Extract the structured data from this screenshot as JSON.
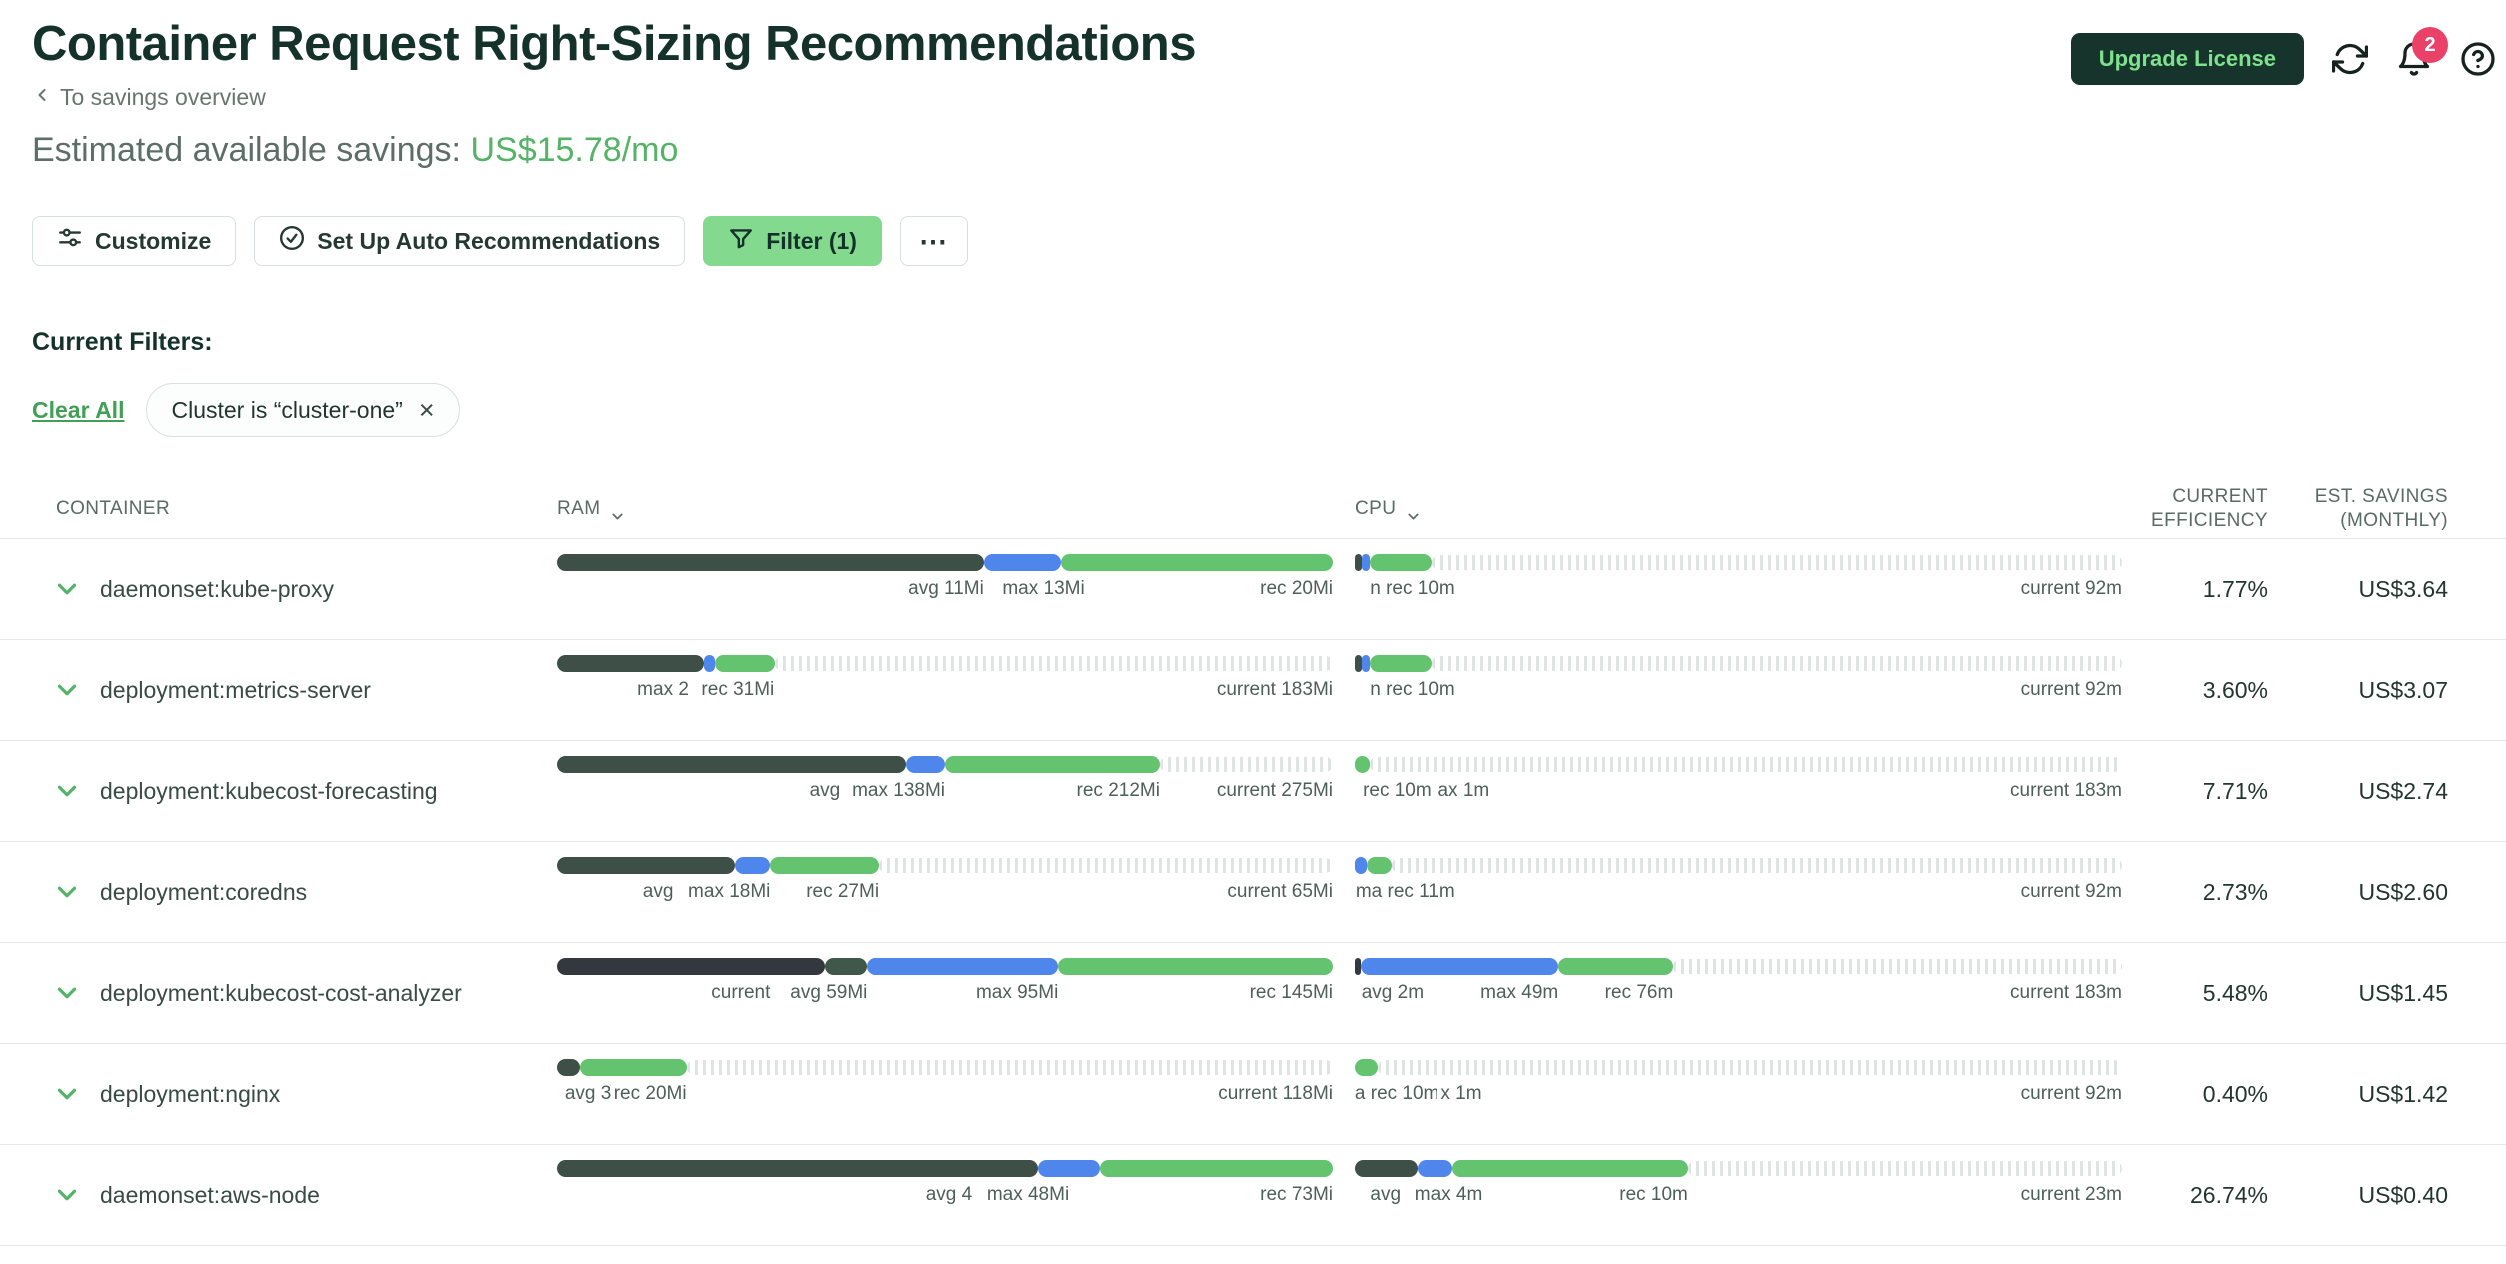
{
  "header": {
    "title": "Container Request Right-Sizing Recommendations",
    "breadcrumb": "To savings overview",
    "savings_label": "Estimated available savings:",
    "savings_value": "US$15.78/mo",
    "upgrade_label": "Upgrade License",
    "notification_count": "2"
  },
  "toolbar": {
    "customize": "Customize",
    "auto_rec": "Set Up Auto Recommendations",
    "filter": "Filter (1)",
    "more": "⋯"
  },
  "filters": {
    "heading": "Current Filters:",
    "clear_all": "Clear All",
    "chips": [
      {
        "label": "Cluster is “cluster-one”"
      }
    ]
  },
  "colors": {
    "slate": "#3d4f46",
    "charcoal": "#32383e",
    "slate2": "#3f5849",
    "blue": "#4e86ec",
    "green": "#64c36f",
    "accent": "#55b368",
    "badge": "#ea4168",
    "filter_bg": "#83da8e",
    "dark_green": "#16342b"
  },
  "table": {
    "columns": {
      "container": "CONTAINER",
      "ram": "RAM",
      "cpu": "CPU",
      "efficiency": "CURRENT\nEFFICIENCY",
      "savings": "EST. SAVINGS\n(MONTHLY)"
    },
    "rows": [
      {
        "name": "daemonset:kube-proxy",
        "ram": {
          "segs": [
            [
              "slate",
              55
            ],
            [
              "blue",
              10
            ],
            [
              "green",
              35
            ]
          ],
          "labels": [
            [
              "avg 11Mi",
              55
            ],
            [
              "max 13Mi",
              68
            ],
            [
              "rec 20Mi",
              100
            ]
          ]
        },
        "cpu": {
          "segs": [
            [
              "slate",
              0.9
            ],
            [
              "blue",
              1.1
            ],
            [
              "green",
              8
            ]
          ],
          "labels": [
            [
              "n rec 10m",
              13
            ],
            [
              "current 92m",
              100
            ]
          ]
        },
        "eff": "1.77%",
        "save": "US$3.64"
      },
      {
        "name": "deployment:metrics-server",
        "ram": {
          "segs": [
            [
              "slate",
              19
            ],
            [
              "blue",
              1.4
            ],
            [
              "green",
              7.7
            ]
          ],
          "labels": [
            [
              "max 2",
              17
            ],
            [
              "rec 31Mi",
              28
            ],
            [
              "current 183Mi",
              100
            ]
          ]
        },
        "cpu": {
          "segs": [
            [
              "slate",
              0.9
            ],
            [
              "blue",
              1.1
            ],
            [
              "green",
              8
            ]
          ],
          "labels": [
            [
              "n rec 10m",
              13
            ],
            [
              "current 92m",
              100
            ]
          ]
        },
        "eff": "3.60%",
        "save": "US$3.07"
      },
      {
        "name": "deployment:kubecost-forecasting",
        "ram": {
          "segs": [
            [
              "slate",
              45
            ],
            [
              "blue",
              5
            ],
            [
              "green",
              27.7
            ]
          ],
          "labels": [
            [
              "avg",
              36.5
            ],
            [
              "max 138Mi",
              50
            ],
            [
              "rec 212Mi",
              77.7
            ],
            [
              "current 275Mi",
              100
            ]
          ]
        },
        "cpu": {
          "segs": [
            [
              "green",
              2
            ]
          ],
          "labels": [
            [
              "rec 10m",
              10
            ],
            [
              "ax 1m",
              17.5
            ],
            [
              "current 183m",
              100
            ]
          ]
        },
        "eff": "7.71%",
        "save": "US$2.74"
      },
      {
        "name": "deployment:coredns",
        "ram": {
          "segs": [
            [
              "slate",
              23
            ],
            [
              "blue",
              4.5
            ],
            [
              "green",
              14
            ]
          ],
          "labels": [
            [
              "avg",
              15
            ],
            [
              "max 18Mi",
              27.5
            ],
            [
              "rec 27Mi",
              41.5
            ],
            [
              "current 65Mi",
              100
            ]
          ]
        },
        "cpu": {
          "segs": [
            [
              "blue",
              1.6
            ],
            [
              "green",
              3.2
            ]
          ],
          "labels": [
            [
              "ma rec 11m",
              13
            ],
            [
              "current 92m",
              100
            ]
          ]
        },
        "eff": "2.73%",
        "save": "US$2.60"
      },
      {
        "name": "deployment:kubecost-cost-analyzer",
        "ram": {
          "segs": [
            [
              "charcoal",
              34.5
            ],
            [
              "slate2",
              5.5
            ],
            [
              "blue",
              24.6
            ],
            [
              "green",
              35.4
            ]
          ],
          "labels": [
            [
              "current",
              27.5
            ],
            [
              "avg 59Mi",
              40
            ],
            [
              "max 95Mi",
              64.6
            ],
            [
              "rec 145Mi",
              100
            ]
          ]
        },
        "cpu": {
          "segs": [
            [
              "charcoal",
              0.8
            ],
            [
              "blue",
              25.7
            ],
            [
              "green",
              15
            ]
          ],
          "labels": [
            [
              "avg 2m",
              9
            ],
            [
              "max 49m",
              26.5
            ],
            [
              "rec 76m",
              41.5
            ],
            [
              "current 183m",
              100
            ]
          ]
        },
        "eff": "5.48%",
        "save": "US$1.45"
      },
      {
        "name": "deployment:nginx",
        "ram": {
          "segs": [
            [
              "slate",
              3
            ],
            [
              "green",
              13.7
            ]
          ],
          "labels": [
            [
              "avg 3",
              7
            ],
            [
              "rec 20Mi",
              16.7
            ],
            [
              "current 118Mi",
              100
            ]
          ]
        },
        "cpu": {
          "segs": [
            [
              "green",
              3
            ]
          ],
          "labels": [
            [
              "a rec 10m",
              11
            ],
            [
              "x 1m",
              16.5
            ],
            [
              "current 92m",
              100
            ]
          ]
        },
        "eff": "0.40%",
        "save": "US$1.42"
      },
      {
        "name": "daemonset:aws-node",
        "ram": {
          "segs": [
            [
              "slate",
              62
            ],
            [
              "blue",
              8
            ],
            [
              "green",
              30
            ]
          ],
          "labels": [
            [
              "avg 4",
              53.5
            ],
            [
              "max 48Mi",
              66
            ],
            [
              "rec 73Mi",
              100
            ]
          ]
        },
        "cpu": {
          "segs": [
            [
              "slate",
              8.2
            ],
            [
              "blue",
              4.4
            ],
            [
              "green",
              30.8
            ]
          ],
          "labels": [
            [
              "avg",
              6
            ],
            [
              "max 4m",
              16.6
            ],
            [
              "rec 10m",
              43.4
            ],
            [
              "current 23m",
              100
            ]
          ]
        },
        "eff": "26.74%",
        "save": "US$0.40"
      }
    ]
  }
}
